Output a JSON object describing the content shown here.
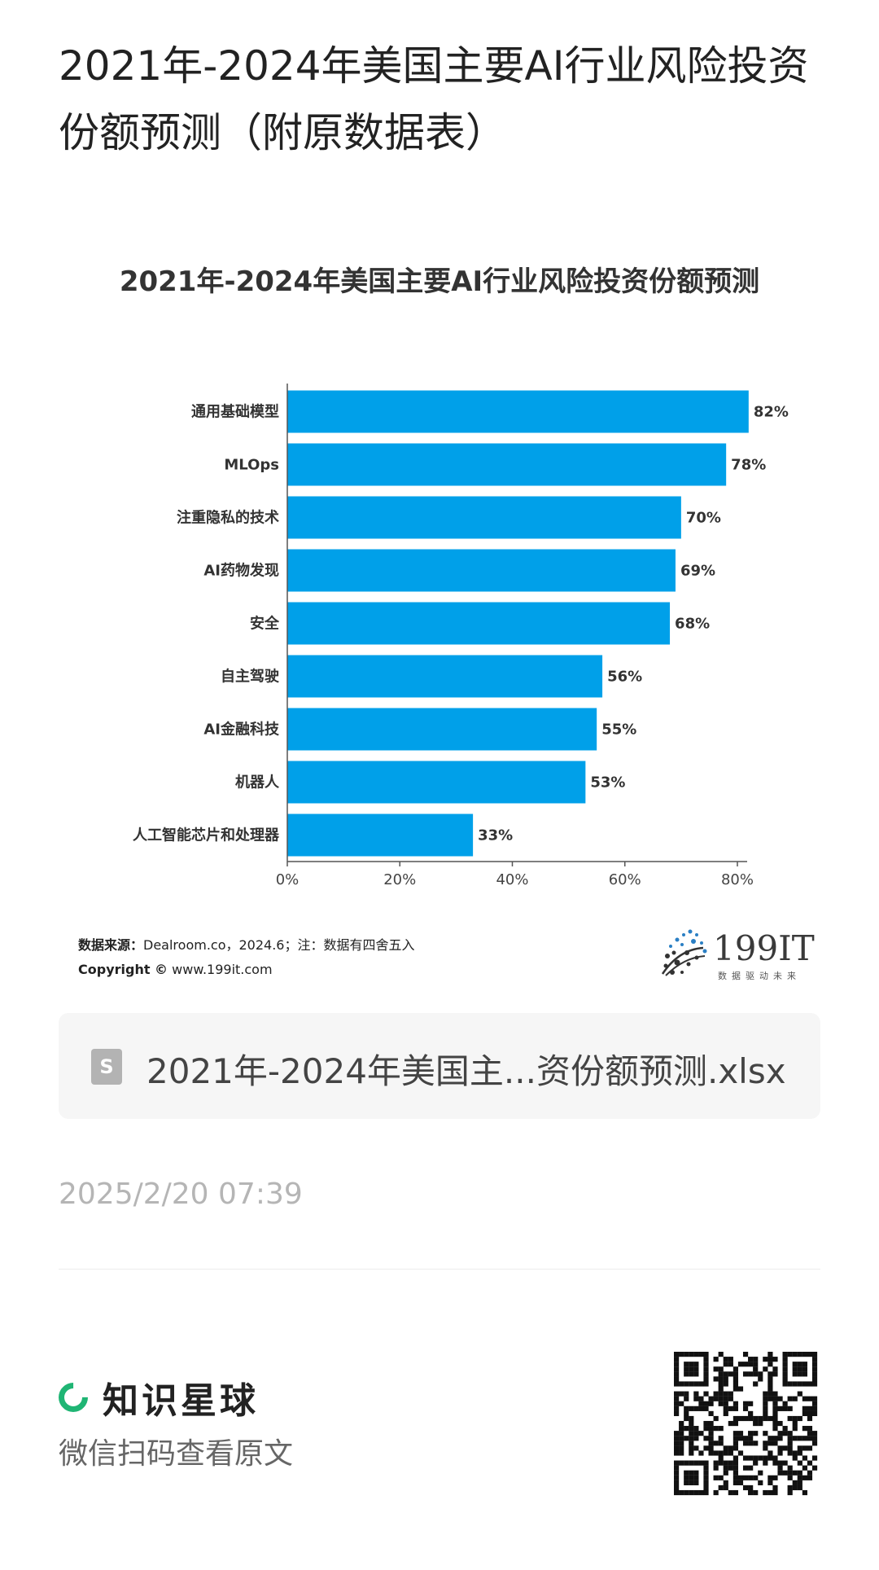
{
  "page": {
    "title": "2021年-2024年美国主要AI行业风险投资份额预测（附原数据表）"
  },
  "chart_data": {
    "type": "bar",
    "orientation": "horizontal",
    "title": "2021年-2024年美国主要AI行业风险投资份额预测",
    "categories": [
      "通用基础模型",
      "MLOps",
      "注重隐私的技术",
      "AI药物发现",
      "安全",
      "自主驾驶",
      "AI金融科技",
      "机器人",
      "人工智能芯片和处理器"
    ],
    "values": [
      82,
      78,
      70,
      69,
      68,
      56,
      55,
      53,
      33
    ],
    "value_labels": [
      "82%",
      "78%",
      "70%",
      "69%",
      "68%",
      "56%",
      "55%",
      "53%",
      "33%"
    ],
    "x_ticks": [
      "0%",
      "20%",
      "40%",
      "60%",
      "80%"
    ],
    "xlim": [
      0,
      80
    ],
    "bar_color": "#00a0e9",
    "grid": false,
    "legend": "none"
  },
  "source": {
    "label": "数据来源：",
    "text": "Dealroom.co，2024.6；注：数据有四舍五入",
    "copyright_label": "Copyright ©",
    "copyright_url": "www.199it.com"
  },
  "logo": {
    "name": "199IT",
    "tagline": "数据驱动未来"
  },
  "file": {
    "icon": "S",
    "name": "2021年-2024年美国主...资份额预测.xlsx"
  },
  "timestamp": "2025/2/20 07:39",
  "brand": {
    "name": "知识星球",
    "hint": "微信扫码查看原文"
  },
  "colors": {
    "brand_green": "#1fb574",
    "bar_blue": "#00a0e9"
  }
}
